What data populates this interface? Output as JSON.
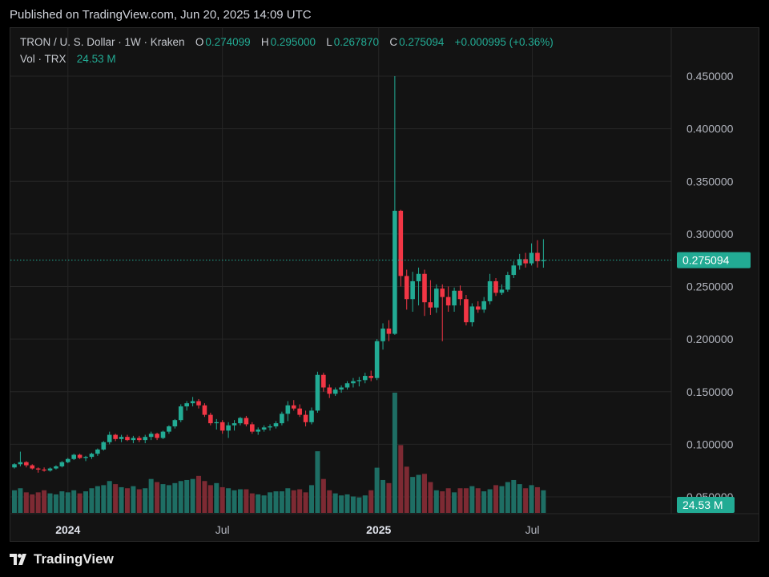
{
  "published": "Published on TradingView.com, Jun 20, 2025 14:09 UTC",
  "legend": {
    "symbol": "TRON / U. S. Dollar · 1W · Kraken",
    "o_label": "O",
    "o": "0.274099",
    "h_label": "H",
    "h": "0.295000",
    "l_label": "L",
    "l": "0.267870",
    "c_label": "C",
    "c": "0.275094",
    "change": "+0.000995 (+0.36%)",
    "vol_label": "Vol · TRX",
    "vol": "24.53 M"
  },
  "footer": {
    "brand": "TradingView"
  },
  "colors": {
    "up": "#22ab94",
    "down": "#f23645",
    "up_vol": "#1e6e64",
    "down_vol": "#7d2a33",
    "grid": "#262626",
    "text": "#d1d4dc"
  },
  "chart_data": {
    "type": "candlestick",
    "y_ticks": [
      "0.450000",
      "0.400000",
      "0.350000",
      "0.300000",
      "0.250000",
      "0.200000",
      "0.150000",
      "0.100000",
      "0.050000"
    ],
    "x_ticks": [
      {
        "label": "2024",
        "date": "2024-01-01"
      },
      {
        "label": "Jul",
        "date": "2024-07-01"
      },
      {
        "label": "2025",
        "date": "2025-01-01"
      },
      {
        "label": "Jul",
        "date": "2025-07-01"
      }
    ],
    "last_price_label": "0.275094",
    "last_price": 0.275094,
    "last_volume_label": "24.53 M",
    "ylim": [
      0.03,
      0.47
    ],
    "candles": [
      [
        0.078,
        0.082,
        0.077,
        0.081
      ],
      [
        0.081,
        0.093,
        0.079,
        0.083
      ],
      [
        0.083,
        0.084,
        0.078,
        0.08
      ],
      [
        0.08,
        0.081,
        0.076,
        0.077
      ],
      [
        0.077,
        0.078,
        0.073,
        0.076
      ],
      [
        0.076,
        0.078,
        0.074,
        0.075
      ],
      [
        0.075,
        0.078,
        0.074,
        0.077
      ],
      [
        0.077,
        0.08,
        0.076,
        0.079
      ],
      [
        0.079,
        0.084,
        0.078,
        0.083
      ],
      [
        0.083,
        0.087,
        0.082,
        0.086
      ],
      [
        0.086,
        0.091,
        0.085,
        0.09
      ],
      [
        0.09,
        0.091,
        0.086,
        0.087
      ],
      [
        0.087,
        0.089,
        0.084,
        0.088
      ],
      [
        0.088,
        0.092,
        0.086,
        0.091
      ],
      [
        0.091,
        0.096,
        0.089,
        0.095
      ],
      [
        0.095,
        0.103,
        0.094,
        0.102
      ],
      [
        0.102,
        0.112,
        0.1,
        0.109
      ],
      [
        0.109,
        0.11,
        0.103,
        0.105
      ],
      [
        0.105,
        0.109,
        0.102,
        0.107
      ],
      [
        0.107,
        0.109,
        0.103,
        0.104
      ],
      [
        0.104,
        0.108,
        0.101,
        0.106
      ],
      [
        0.106,
        0.108,
        0.102,
        0.104
      ],
      [
        0.104,
        0.109,
        0.101,
        0.107
      ],
      [
        0.107,
        0.112,
        0.104,
        0.11
      ],
      [
        0.11,
        0.111,
        0.104,
        0.106
      ],
      [
        0.106,
        0.113,
        0.105,
        0.112
      ],
      [
        0.112,
        0.118,
        0.11,
        0.117
      ],
      [
        0.117,
        0.124,
        0.115,
        0.123
      ],
      [
        0.123,
        0.138,
        0.121,
        0.136
      ],
      [
        0.136,
        0.141,
        0.132,
        0.139
      ],
      [
        0.139,
        0.145,
        0.136,
        0.141
      ],
      [
        0.141,
        0.143,
        0.134,
        0.137
      ],
      [
        0.137,
        0.139,
        0.126,
        0.128
      ],
      [
        0.128,
        0.13,
        0.118,
        0.12
      ],
      [
        0.12,
        0.124,
        0.114,
        0.121
      ],
      [
        0.121,
        0.123,
        0.11,
        0.113
      ],
      [
        0.113,
        0.121,
        0.106,
        0.118
      ],
      [
        0.118,
        0.123,
        0.113,
        0.12
      ],
      [
        0.12,
        0.126,
        0.118,
        0.125
      ],
      [
        0.125,
        0.127,
        0.117,
        0.119
      ],
      [
        0.119,
        0.121,
        0.11,
        0.112
      ],
      [
        0.112,
        0.116,
        0.109,
        0.114
      ],
      [
        0.114,
        0.118,
        0.112,
        0.116
      ],
      [
        0.116,
        0.119,
        0.113,
        0.117
      ],
      [
        0.117,
        0.122,
        0.115,
        0.12
      ],
      [
        0.12,
        0.131,
        0.118,
        0.129
      ],
      [
        0.129,
        0.141,
        0.122,
        0.137
      ],
      [
        0.137,
        0.142,
        0.132,
        0.134
      ],
      [
        0.134,
        0.138,
        0.126,
        0.128
      ],
      [
        0.128,
        0.132,
        0.117,
        0.121
      ],
      [
        0.121,
        0.135,
        0.119,
        0.132
      ],
      [
        0.132,
        0.169,
        0.13,
        0.166
      ],
      [
        0.166,
        0.168,
        0.15,
        0.154
      ],
      [
        0.154,
        0.157,
        0.144,
        0.148
      ],
      [
        0.148,
        0.154,
        0.146,
        0.152
      ],
      [
        0.152,
        0.156,
        0.149,
        0.154
      ],
      [
        0.154,
        0.16,
        0.152,
        0.158
      ],
      [
        0.158,
        0.163,
        0.154,
        0.16
      ],
      [
        0.16,
        0.164,
        0.155,
        0.161
      ],
      [
        0.161,
        0.168,
        0.158,
        0.165
      ],
      [
        0.165,
        0.17,
        0.16,
        0.163
      ],
      [
        0.163,
        0.2,
        0.161,
        0.198
      ],
      [
        0.198,
        0.215,
        0.19,
        0.21
      ],
      [
        0.21,
        0.218,
        0.198,
        0.205
      ],
      [
        0.205,
        0.45,
        0.204,
        0.322
      ],
      [
        0.322,
        0.323,
        0.25,
        0.26
      ],
      [
        0.26,
        0.266,
        0.228,
        0.238
      ],
      [
        0.238,
        0.264,
        0.226,
        0.255
      ],
      [
        0.255,
        0.268,
        0.232,
        0.262
      ],
      [
        0.262,
        0.266,
        0.222,
        0.235
      ],
      [
        0.235,
        0.256,
        0.223,
        0.23
      ],
      [
        0.23,
        0.252,
        0.225,
        0.248
      ],
      [
        0.248,
        0.252,
        0.198,
        0.24
      ],
      [
        0.24,
        0.25,
        0.226,
        0.232
      ],
      [
        0.232,
        0.249,
        0.226,
        0.246
      ],
      [
        0.246,
        0.251,
        0.232,
        0.238
      ],
      [
        0.238,
        0.242,
        0.213,
        0.216
      ],
      [
        0.216,
        0.234,
        0.212,
        0.231
      ],
      [
        0.231,
        0.236,
        0.225,
        0.228
      ],
      [
        0.228,
        0.24,
        0.225,
        0.236
      ],
      [
        0.236,
        0.262,
        0.233,
        0.255
      ],
      [
        0.255,
        0.258,
        0.241,
        0.244
      ],
      [
        0.244,
        0.252,
        0.242,
        0.247
      ],
      [
        0.247,
        0.264,
        0.245,
        0.261
      ],
      [
        0.261,
        0.274,
        0.258,
        0.27
      ],
      [
        0.27,
        0.281,
        0.266,
        0.276
      ],
      [
        0.276,
        0.282,
        0.268,
        0.272
      ],
      [
        0.272,
        0.291,
        0.27,
        0.282
      ],
      [
        0.282,
        0.294,
        0.268,
        0.274
      ],
      [
        0.274099,
        0.295,
        0.26787,
        0.275094
      ]
    ],
    "volumes": [
      22,
      24,
      20,
      18,
      20,
      22,
      19,
      18,
      21,
      20,
      22,
      19,
      21,
      24,
      26,
      27,
      31,
      28,
      25,
      24,
      26,
      23,
      24,
      33,
      30,
      28,
      27,
      29,
      31,
      32,
      33,
      36,
      31,
      27,
      29,
      25,
      24,
      22,
      23,
      23,
      19,
      18,
      17,
      20,
      21,
      21,
      24,
      22,
      23,
      20,
      27,
      60,
      33,
      22,
      19,
      17,
      18,
      16,
      15,
      17,
      22,
      44,
      32,
      29,
      117,
      66,
      45,
      35,
      37,
      38,
      30,
      22,
      21,
      24,
      20,
      24,
      24,
      26,
      24,
      21,
      23,
      27,
      26,
      30,
      32,
      28,
      24,
      27,
      25,
      22
    ],
    "volume_max_units": 117
  }
}
